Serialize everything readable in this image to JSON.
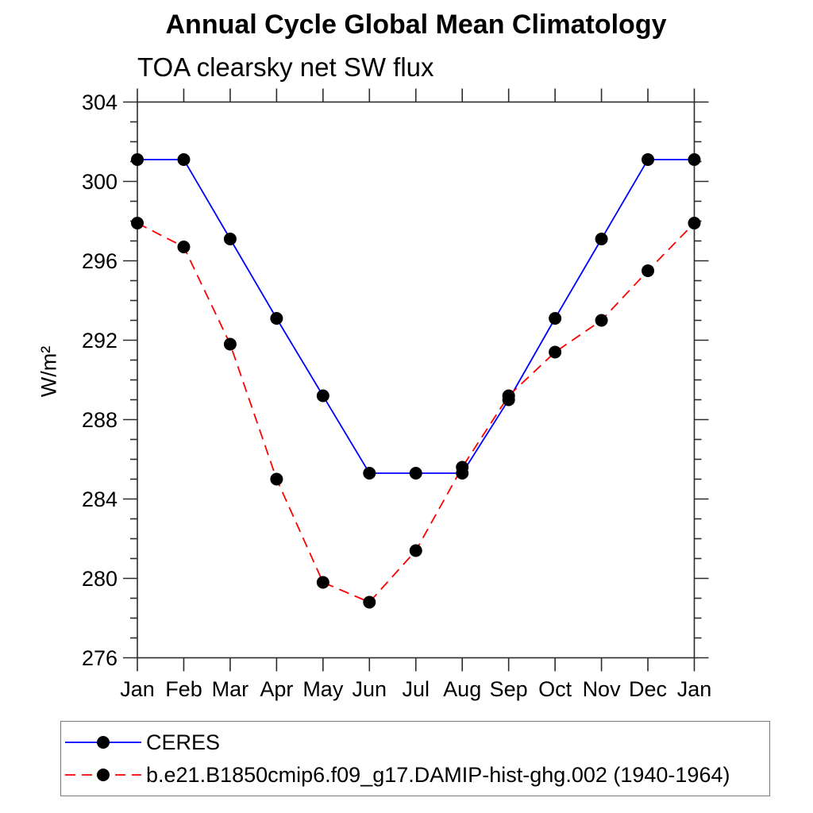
{
  "title": "Annual Cycle Global Mean Climatology",
  "subtitle": "TOA clearsky net SW flux",
  "chart_data": {
    "type": "line",
    "x_categories": [
      "Jan",
      "Feb",
      "Mar",
      "Apr",
      "May",
      "Jun",
      "Jul",
      "Aug",
      "Sep",
      "Oct",
      "Nov",
      "Dec",
      "Jan"
    ],
    "ylabel": "W/m²",
    "ylim": [
      276,
      304
    ],
    "ytick_major": [
      276,
      280,
      284,
      288,
      292,
      296,
      300,
      304
    ],
    "ytick_minor_step": 1,
    "grid": false,
    "legend_position": "bottom-left-box",
    "series": [
      {
        "name": "CERES",
        "color": "#0000ff",
        "style": "solid",
        "marker": "black-dot",
        "values": [
          301.1,
          301.1,
          297.1,
          293.1,
          289.2,
          285.3,
          285.3,
          285.3,
          289.0,
          293.1,
          297.1,
          301.1,
          301.1
        ]
      },
      {
        "name": "b.e21.B1850cmip6.f09_g17.DAMIP-hist-ghg.002 (1940-1964)",
        "color": "#ff0000",
        "style": "dashed",
        "marker": "black-dot",
        "values": [
          297.9,
          296.7,
          291.8,
          285.0,
          279.8,
          278.8,
          281.4,
          285.6,
          289.2,
          291.4,
          293.0,
          295.5,
          297.9
        ]
      }
    ]
  },
  "colors": {
    "axis": "#2b2b2b",
    "marker": "#000000",
    "legend_border": "#7a7a7a"
  }
}
